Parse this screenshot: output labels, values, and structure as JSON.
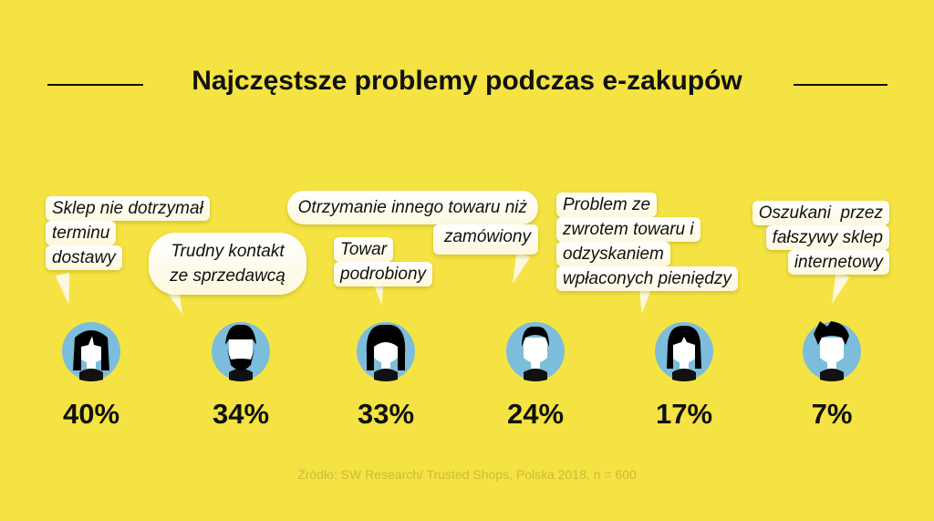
{
  "title": "Najczęstsze problemy podczas e-zakupów",
  "items": [
    {
      "lines": [
        "Sklep nie dotrzymał",
        "terminu",
        "dostawy"
      ],
      "percent": "40%",
      "avatar": "woman-bangs-avatar-icon"
    },
    {
      "lines": [
        "Trudny kontakt",
        "ze sprzedawcą"
      ],
      "percent": "34%",
      "avatar": "bearded-man-avatar-icon"
    },
    {
      "lines": [
        "Towar",
        "podrobiony"
      ],
      "percent": "33%",
      "avatar": "woman-long-hair-avatar-icon"
    },
    {
      "lines": [
        "Otrzymanie innego towaru niż",
        "zamówiony"
      ],
      "percent": "24%",
      "avatar": "man-short-hair-avatar-icon"
    },
    {
      "lines": [
        "Problem ze",
        "zwrotem towaru i",
        "odzyskaniem",
        "wpłaconych pieniędzy"
      ],
      "percent": "17%",
      "avatar": "woman-bob-avatar-icon"
    },
    {
      "lines": [
        "Oszukani  przez",
        "fałszywy sklep",
        "internetowy"
      ],
      "percent": "7%",
      "avatar": "man-quiff-avatar-icon"
    }
  ],
  "source": "Źródło: SW Research/ Trusted Shops, Polska 2018, n = 600",
  "colors": {
    "background": "#f4e342",
    "avatar_circle": "#7dbddc",
    "hair": "#000000"
  }
}
